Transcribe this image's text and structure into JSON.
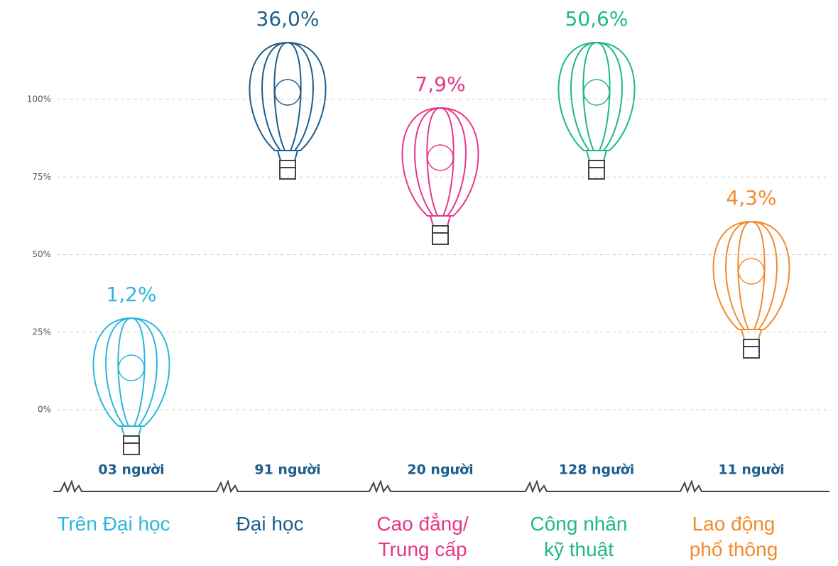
{
  "chart_data": {
    "type": "balloon",
    "categories": [
      "Trên Đại học",
      "Đại học",
      "Cao đẳng/\nTrung cấp",
      "Công nhân\nkỹ thuật",
      "Lao động\nphổ thông"
    ],
    "values": [
      1.2,
      36.0,
      7.9,
      50.6,
      4.3
    ],
    "value_labels": [
      "1,2%",
      "36,0%",
      "7,9%",
      "50,6%",
      "4,3%"
    ],
    "counts": [
      3,
      91,
      20,
      128,
      11
    ],
    "count_labels": [
      "03 người",
      "91 người",
      "20 người",
      "128 người",
      "11 người"
    ],
    "colors": [
      "#2bb7dc",
      "#1d5e8e",
      "#e6378b",
      "#1fb980",
      "#f28a2e"
    ],
    "ylim": [
      0,
      100
    ],
    "yticks": [
      {
        "value": 0,
        "label": "0%"
      },
      {
        "value": 25,
        "label": "25%"
      },
      {
        "value": 50,
        "label": "50%"
      },
      {
        "value": 75,
        "label": "75%"
      },
      {
        "value": 100,
        "label": "100%"
      }
    ],
    "grid": true
  }
}
